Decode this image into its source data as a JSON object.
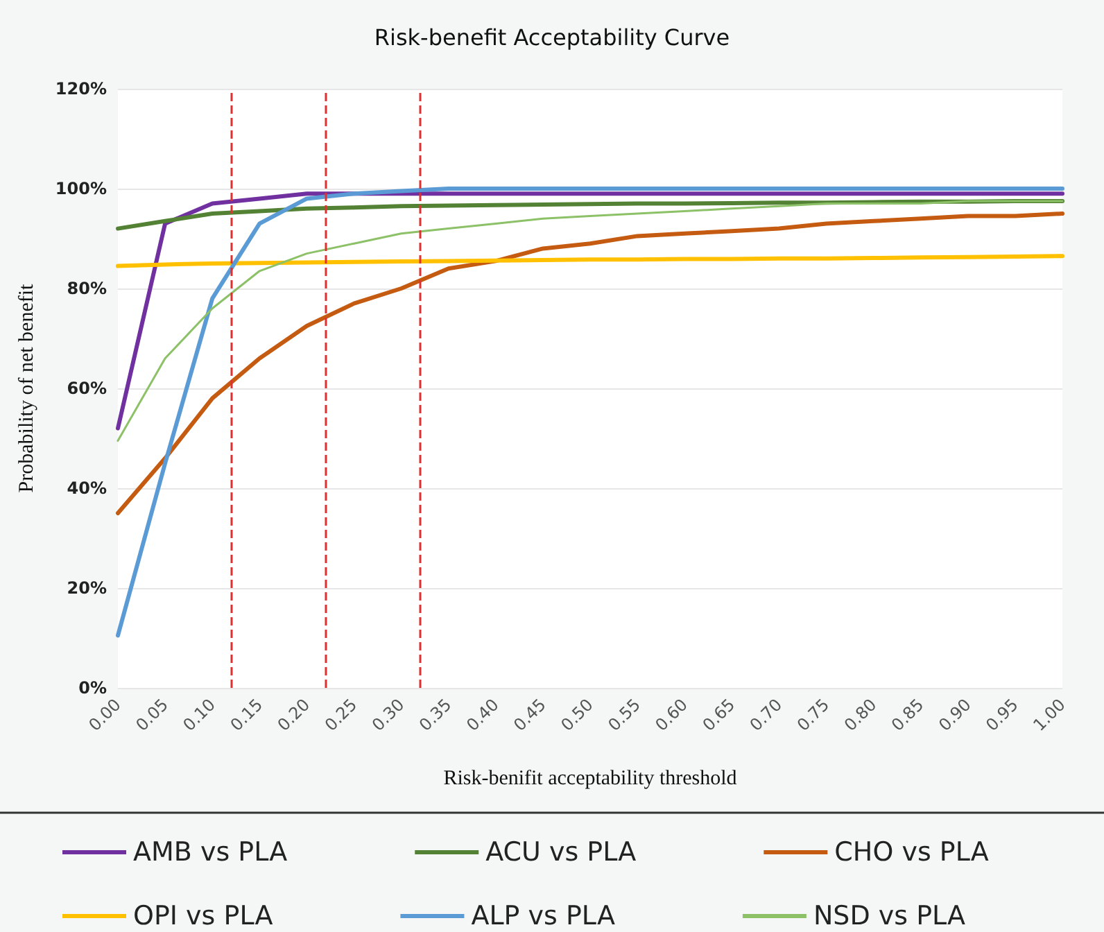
{
  "chart_data": {
    "type": "line",
    "title": "Risk-benefit Acceptability Curve",
    "xlabel": "Risk-benifit acceptability threshold",
    "ylabel": "Probability of net benefit",
    "x": [
      0,
      0.05,
      0.1,
      0.15,
      0.2,
      0.25,
      0.3,
      0.35,
      0.4,
      0.45,
      0.5,
      0.55,
      0.6,
      0.65,
      0.7,
      0.75,
      0.8,
      0.85,
      0.9,
      0.95,
      1
    ],
    "xlim": [
      0,
      1
    ],
    "xticks": [
      {
        "value": 0,
        "label": "0.00"
      },
      {
        "value": 0.05,
        "label": "0.05"
      },
      {
        "value": 0.1,
        "label": "0.10"
      },
      {
        "value": 0.15,
        "label": "0.15"
      },
      {
        "value": 0.2,
        "label": "0.20"
      },
      {
        "value": 0.25,
        "label": "0.25"
      },
      {
        "value": 0.3,
        "label": "0.30"
      },
      {
        "value": 0.35,
        "label": "0.35"
      },
      {
        "value": 0.4,
        "label": "0.40"
      },
      {
        "value": 0.45,
        "label": "0.45"
      },
      {
        "value": 0.5,
        "label": "0.50"
      },
      {
        "value": 0.55,
        "label": "0.55"
      },
      {
        "value": 0.6,
        "label": "0.60"
      },
      {
        "value": 0.65,
        "label": "0.65"
      },
      {
        "value": 0.7,
        "label": "0.70"
      },
      {
        "value": 0.75,
        "label": "0.75"
      },
      {
        "value": 0.8,
        "label": "0.80"
      },
      {
        "value": 0.85,
        "label": "0.85"
      },
      {
        "value": 0.9,
        "label": "0.90"
      },
      {
        "value": 0.95,
        "label": "0.95"
      },
      {
        "value": 1,
        "label": "1.00"
      }
    ],
    "ylim": [
      0,
      120
    ],
    "yticks": [
      {
        "value": 0,
        "label": "0%"
      },
      {
        "value": 20,
        "label": "20%"
      },
      {
        "value": 40,
        "label": "40%"
      },
      {
        "value": 60,
        "label": "60%"
      },
      {
        "value": 80,
        "label": "80%"
      },
      {
        "value": 100,
        "label": "100%"
      },
      {
        "value": 120,
        "label": "120%"
      }
    ],
    "series": [
      {
        "name": "AMB vs PLA",
        "color": "#7030a0",
        "values": [
          52,
          93,
          97,
          98,
          99,
          99,
          99,
          99,
          99,
          99,
          99,
          99,
          99,
          99,
          99,
          99,
          99,
          99,
          99,
          99,
          99
        ]
      },
      {
        "name": "ACU vs PLA",
        "color": "#548235",
        "values": [
          92,
          93.5,
          95,
          95.5,
          96,
          96.2,
          96.5,
          96.6,
          96.7,
          96.8,
          96.9,
          97,
          97,
          97.1,
          97.2,
          97.2,
          97.3,
          97.4,
          97.4,
          97.5,
          97.5
        ]
      },
      {
        "name": "CHO vs PLA",
        "color": "#c55a11",
        "values": [
          35,
          46,
          58,
          66,
          72.5,
          77,
          80,
          84,
          85.5,
          88,
          89,
          90.5,
          91,
          91.5,
          92,
          93,
          93.5,
          94,
          94.5,
          94.5,
          95
        ]
      },
      {
        "name": "OPI vs PLA",
        "color": "#ffc000",
        "values": [
          84.5,
          84.8,
          85,
          85.1,
          85.2,
          85.3,
          85.4,
          85.5,
          85.6,
          85.7,
          85.8,
          85.8,
          85.9,
          85.9,
          86,
          86,
          86.1,
          86.2,
          86.3,
          86.4,
          86.5
        ]
      },
      {
        "name": "ALP vs PLA",
        "color": "#5b9bd5",
        "values": [
          10.5,
          45,
          78,
          93,
          98,
          99,
          99.5,
          100,
          100,
          100,
          100,
          100,
          100,
          100,
          100,
          100,
          100,
          100,
          100,
          100,
          100
        ]
      },
      {
        "name": "NSD vs PLA",
        "color": "#8cc168",
        "values": [
          49.5,
          66,
          76,
          83.5,
          87,
          89,
          91,
          92,
          93,
          94,
          94.5,
          95,
          95.5,
          96,
          96.5,
          97,
          97,
          97,
          97.5,
          97.5,
          97.5
        ]
      }
    ],
    "ref_lines": [
      {
        "axis": "x",
        "value": 0.118,
        "color": "#e03030",
        "line_style": "dashed"
      },
      {
        "axis": "x",
        "value": 0.221,
        "color": "#e03030",
        "line_style": "dashed"
      },
      {
        "axis": "x",
        "value": 0.32,
        "color": "#e03030",
        "line_style": "dashed"
      }
    ],
    "grid": "y",
    "legend": "bottom",
    "marker": "none",
    "line_style": "solid"
  }
}
